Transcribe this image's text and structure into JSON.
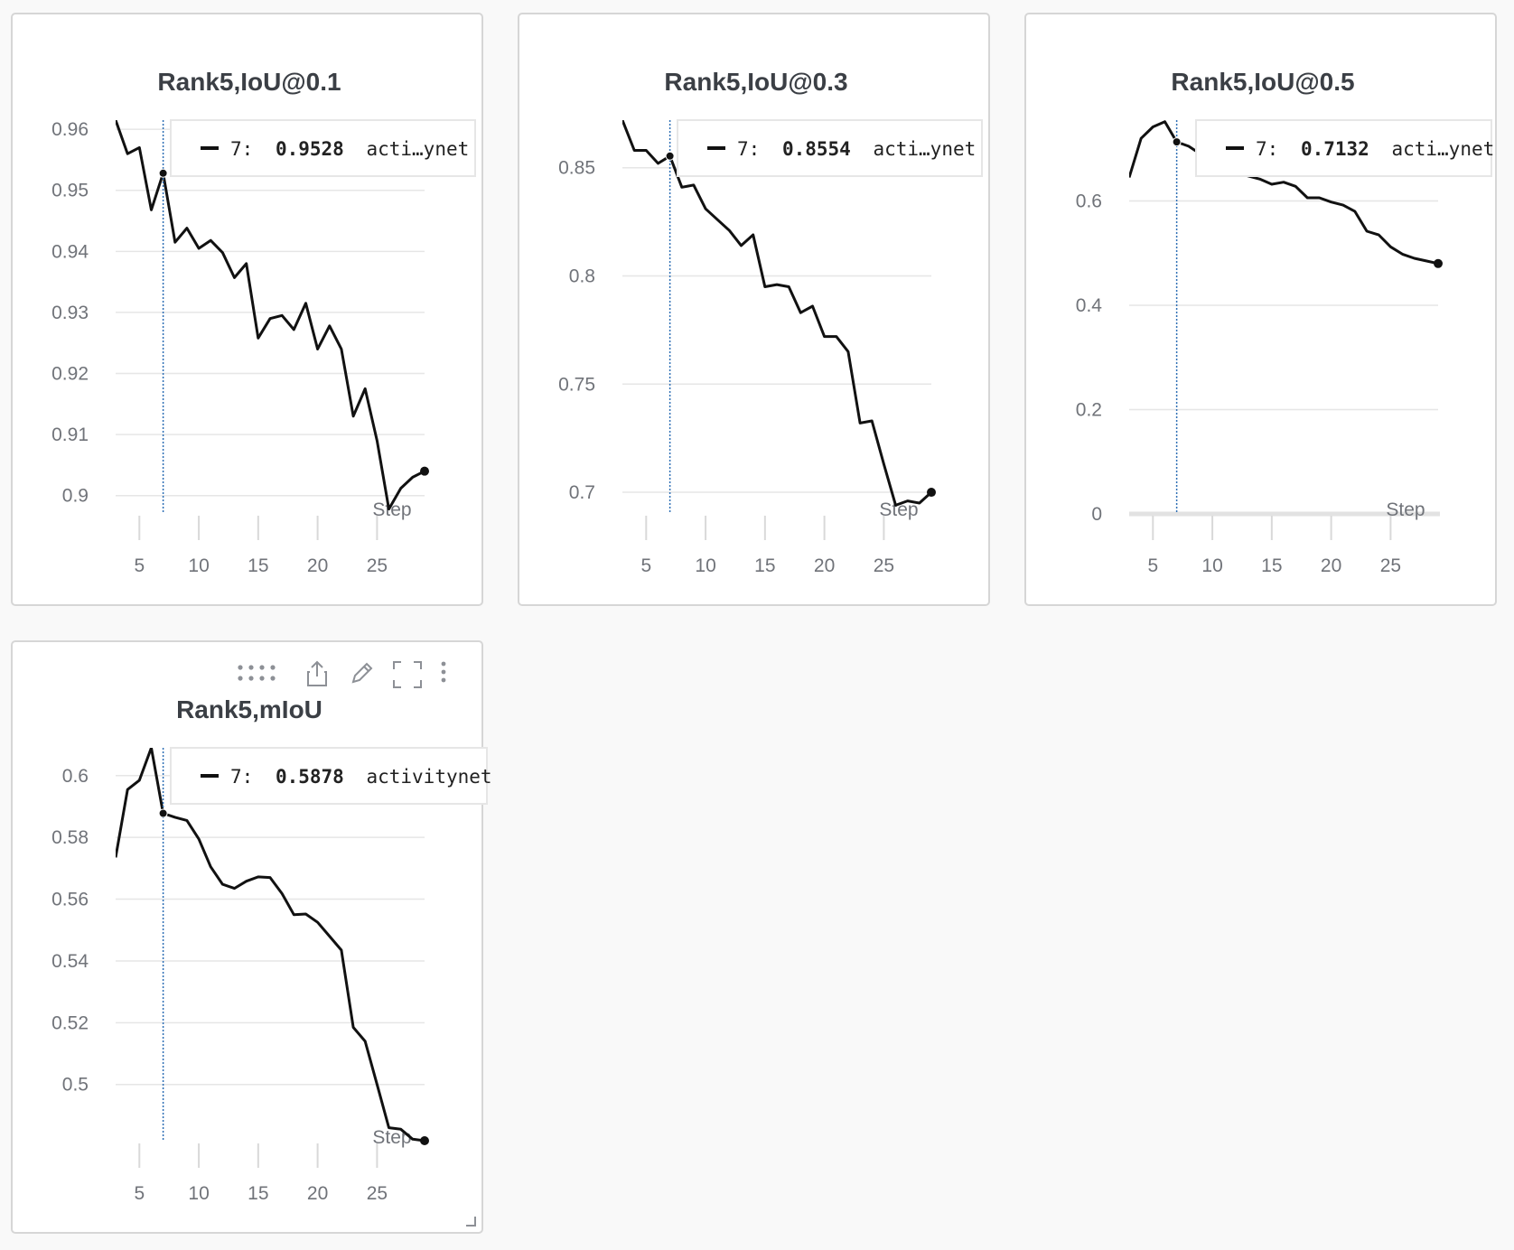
{
  "panels": [
    {
      "title": "Rank5,IoU@0.1",
      "legend": {
        "step": "7:",
        "value": "0.9528",
        "run": "acti…ynet"
      }
    },
    {
      "title": "Rank5,IoU@0.3",
      "legend": {
        "step": "7:",
        "value": "0.8554",
        "run": "acti…ynet"
      }
    },
    {
      "title": "Rank5,IoU@0.5",
      "legend": {
        "step": "7:",
        "value": "0.7132",
        "run": "acti…ynet"
      }
    },
    {
      "title": "Rank5,mIoU",
      "legend": {
        "step": "7:",
        "value": "0.5878",
        "run": "activitynet"
      }
    }
  ],
  "colors": {
    "line": "#111111",
    "hover_line": "#2f6fb5",
    "grid": "#e6e6e6"
  },
  "icons": [
    "drag-handle-icon",
    "share-icon",
    "edit-icon",
    "fullscreen-icon",
    "more-vertical-icon",
    "resize-icon"
  ],
  "chart_data": [
    {
      "type": "line",
      "title": "Rank5,IoU@0.1",
      "xlabel": "Step",
      "ylabel": "",
      "x_ticks": [
        5,
        10,
        15,
        20,
        25
      ],
      "y_ticks": [
        0.9,
        0.91,
        0.92,
        0.93,
        0.94,
        0.95,
        0.96
      ],
      "y_tick_labels": [
        "0.9",
        "0.91",
        "0.92",
        "0.93",
        "0.94",
        "0.95",
        "0.96"
      ],
      "xlim": [
        3,
        29
      ],
      "ylim": [
        0.897,
        0.9615
      ],
      "hover_step": 7,
      "series": [
        {
          "name": "activitynet",
          "x": [
            3,
            4,
            5,
            6,
            7,
            8,
            9,
            10,
            11,
            12,
            13,
            14,
            15,
            16,
            17,
            18,
            19,
            20,
            21,
            22,
            23,
            24,
            25,
            26,
            27,
            28,
            29
          ],
          "y": [
            0.9615,
            0.956,
            0.957,
            0.9468,
            0.9528,
            0.9415,
            0.9438,
            0.9405,
            0.9418,
            0.9398,
            0.9357,
            0.938,
            0.9258,
            0.929,
            0.9295,
            0.9272,
            0.9315,
            0.924,
            0.9278,
            0.924,
            0.913,
            0.9175,
            0.909,
            0.8978,
            0.9012,
            0.903,
            0.904
          ]
        }
      ]
    },
    {
      "type": "line",
      "title": "Rank5,IoU@0.3",
      "xlabel": "Step",
      "ylabel": "",
      "x_ticks": [
        5,
        10,
        15,
        20,
        25
      ],
      "y_ticks": [
        0.7,
        0.75,
        0.8,
        0.85
      ],
      "y_tick_labels": [
        "0.7",
        "0.75",
        "0.8",
        "0.85"
      ],
      "xlim": [
        3,
        29
      ],
      "ylim": [
        0.69,
        0.872
      ],
      "hover_step": 7,
      "series": [
        {
          "name": "activitynet",
          "x": [
            3,
            4,
            5,
            6,
            7,
            8,
            9,
            10,
            11,
            12,
            13,
            14,
            15,
            16,
            17,
            18,
            19,
            20,
            21,
            22,
            23,
            24,
            25,
            26,
            27,
            28,
            29
          ],
          "y": [
            0.872,
            0.858,
            0.858,
            0.852,
            0.8554,
            0.841,
            0.842,
            0.831,
            0.826,
            0.821,
            0.814,
            0.819,
            0.795,
            0.796,
            0.795,
            0.783,
            0.786,
            0.772,
            0.772,
            0.765,
            0.732,
            0.733,
            0.713,
            0.694,
            0.696,
            0.695,
            0.7
          ]
        }
      ]
    },
    {
      "type": "line",
      "title": "Rank5,IoU@0.5",
      "xlabel": "Step",
      "ylabel": "",
      "x_ticks": [
        5,
        10,
        15,
        20,
        25
      ],
      "y_ticks": [
        0,
        0.2,
        0.4,
        0.6
      ],
      "y_tick_labels": [
        "0",
        "0.2",
        "0.4",
        "0.6"
      ],
      "xlim": [
        3,
        29
      ],
      "ylim": [
        0,
        0.755
      ],
      "hover_step": 7,
      "series": [
        {
          "name": "activitynet",
          "x": [
            3,
            4,
            5,
            6,
            7,
            8,
            9,
            10,
            11,
            12,
            13,
            14,
            15,
            16,
            17,
            18,
            19,
            20,
            21,
            22,
            23,
            24,
            25,
            26,
            27,
            28,
            29
          ],
          "y": [
            0.645,
            0.72,
            0.742,
            0.752,
            0.7132,
            0.705,
            0.69,
            0.68,
            0.672,
            0.66,
            0.648,
            0.642,
            0.632,
            0.636,
            0.628,
            0.606,
            0.606,
            0.598,
            0.592,
            0.58,
            0.542,
            0.535,
            0.512,
            0.498,
            0.49,
            0.485,
            0.48
          ]
        }
      ]
    },
    {
      "type": "line",
      "title": "Rank5,mIoU",
      "xlabel": "Step",
      "ylabel": "",
      "x_ticks": [
        5,
        10,
        15,
        20,
        25
      ],
      "y_ticks": [
        0.5,
        0.52,
        0.54,
        0.56,
        0.58,
        0.6
      ],
      "y_tick_labels": [
        "0.5",
        "0.52",
        "0.54",
        "0.56",
        "0.58",
        "0.6"
      ],
      "xlim": [
        3,
        29
      ],
      "ylim": [
        0.4815,
        0.609
      ],
      "hover_step": 7,
      "series": [
        {
          "name": "activitynet",
          "x": [
            3,
            4,
            5,
            6,
            7,
            8,
            9,
            10,
            11,
            12,
            13,
            14,
            15,
            16,
            17,
            18,
            19,
            20,
            21,
            22,
            23,
            24,
            25,
            26,
            27,
            28,
            29
          ],
          "y": [
            0.5735,
            0.5955,
            0.5985,
            0.609,
            0.5878,
            0.5865,
            0.5855,
            0.5795,
            0.5705,
            0.5648,
            0.5635,
            0.5658,
            0.5672,
            0.567,
            0.5618,
            0.555,
            0.5552,
            0.5525,
            0.548,
            0.5435,
            0.5185,
            0.514,
            0.5,
            0.486,
            0.4855,
            0.4823,
            0.4818
          ]
        }
      ]
    }
  ]
}
